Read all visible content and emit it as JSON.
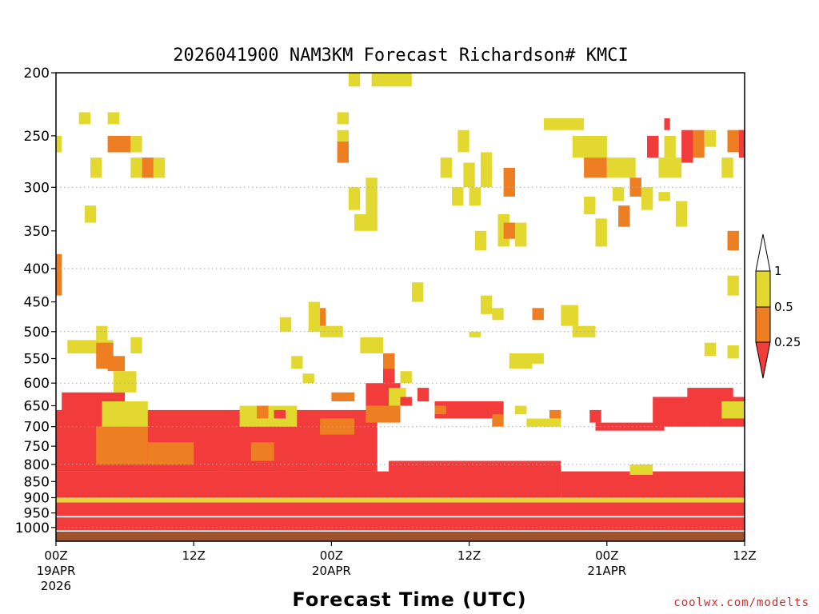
{
  "chart_data": {
    "type": "heatmap",
    "title": "2026041900 NAM3KM Forecast Richardson# KMCI",
    "xlabel": "Forecast Time (UTC)",
    "ylabel": "",
    "x_range_hours": [
      0,
      60
    ],
    "y_range_hpa": [
      200,
      1050
    ],
    "y_scale": "log-pressure",
    "y_ticks": [
      {
        "p": 200,
        "label": "200"
      },
      {
        "p": 250,
        "label": "250"
      },
      {
        "p": 300,
        "label": "300"
      },
      {
        "p": 350,
        "label": "350"
      },
      {
        "p": 400,
        "label": "400"
      },
      {
        "p": 450,
        "label": "450"
      },
      {
        "p": 500,
        "label": "500"
      },
      {
        "p": 550,
        "label": "550"
      },
      {
        "p": 600,
        "label": "600"
      },
      {
        "p": 650,
        "label": "650"
      },
      {
        "p": 700,
        "label": "700"
      },
      {
        "p": 750,
        "label": "750"
      },
      {
        "p": 800,
        "label": "800"
      },
      {
        "p": 850,
        "label": "850"
      },
      {
        "p": 900,
        "label": "900"
      },
      {
        "p": 950,
        "label": "950"
      },
      {
        "p": 1000,
        "label": "1000"
      }
    ],
    "dotted_gridlines_hpa": [
      300,
      400,
      500,
      600,
      700,
      800,
      900,
      1000
    ],
    "x_ticks": [
      {
        "h": 0,
        "label": "00Z",
        "sub1": "19APR",
        "sub2": "2026"
      },
      {
        "h": 12,
        "label": "12Z",
        "sub1": "",
        "sub2": ""
      },
      {
        "h": 24,
        "label": "00Z",
        "sub1": "20APR",
        "sub2": ""
      },
      {
        "h": 36,
        "label": "12Z",
        "sub1": "",
        "sub2": ""
      },
      {
        "h": 48,
        "label": "00Z",
        "sub1": "21APR",
        "sub2": ""
      },
      {
        "h": 60,
        "label": "12Z",
        "sub1": "",
        "sub2": ""
      }
    ],
    "legend": {
      "placement": "right",
      "levels": [
        {
          "label": "1",
          "value": 1
        },
        {
          "label": "0.5",
          "value": 0.5
        },
        {
          "label": "0.25",
          "value": 0.25
        }
      ],
      "bins": [
        {
          "range": "0-0.25",
          "color": "#f23b3b"
        },
        {
          "range": "0.25-0.5",
          "color": "#ee7e22"
        },
        {
          "range": "0.5-1",
          "color": "#e3d830"
        },
        {
          "range": ">1",
          "color": "#ffffff"
        }
      ]
    },
    "colors": {
      "red": "#f23b3b",
      "orange": "#ee7e22",
      "yellow": "#e3d830",
      "ground": "#a0522d",
      "grid": "#aaaaaa"
    },
    "ground_below_hpa": 1015,
    "patches": [
      {
        "h": [
          0,
          60
        ],
        "p": [
          965,
          1010
        ],
        "c": "red"
      },
      {
        "h": [
          0,
          28
        ],
        "p": [
          660,
          820
        ],
        "c": "red"
      },
      {
        "h": [
          0,
          30
        ],
        "p": [
          820,
          900
        ],
        "c": "red"
      },
      {
        "h": [
          29,
          44
        ],
        "p": [
          790,
          900
        ],
        "c": "red"
      },
      {
        "h": [
          0,
          60
        ],
        "p": [
          915,
          960
        ],
        "c": "red"
      },
      {
        "h": [
          44,
          60
        ],
        "p": [
          820,
          910
        ],
        "c": "red"
      },
      {
        "h": [
          47,
          53
        ],
        "p": [
          690,
          710
        ],
        "c": "red"
      },
      {
        "h": [
          52,
          60
        ],
        "p": [
          630,
          700
        ],
        "c": "red"
      },
      {
        "h": [
          55,
          59
        ],
        "p": [
          610,
          630
        ],
        "c": "red"
      },
      {
        "h": [
          33,
          39
        ],
        "p": [
          640,
          680
        ],
        "c": "red"
      },
      {
        "h": [
          27,
          30
        ],
        "p": [
          600,
          650
        ],
        "c": "red"
      },
      {
        "h": [
          0.5,
          6
        ],
        "p": [
          620,
          700
        ],
        "c": "red"
      },
      {
        "h": [
          3.5,
          8
        ],
        "p": [
          700,
          800
        ],
        "c": "orange"
      },
      {
        "h": [
          8,
          12
        ],
        "p": [
          740,
          800
        ],
        "c": "orange"
      },
      {
        "h": [
          17,
          19
        ],
        "p": [
          740,
          790
        ],
        "c": "orange"
      },
      {
        "h": [
          23,
          26
        ],
        "p": [
          680,
          720
        ],
        "c": "orange"
      },
      {
        "h": [
          27,
          30
        ],
        "p": [
          650,
          690
        ],
        "c": "orange"
      },
      {
        "h": [
          24,
          26
        ],
        "p": [
          620,
          640
        ],
        "c": "orange"
      },
      {
        "h": [
          0,
          60
        ],
        "p": [
          900,
          915
        ],
        "c": "yellow"
      },
      {
        "h": [
          4,
          8
        ],
        "p": [
          640,
          700
        ],
        "c": "yellow"
      },
      {
        "h": [
          16,
          21
        ],
        "p": [
          650,
          700
        ],
        "c": "yellow"
      },
      {
        "h": [
          29,
          30.5
        ],
        "p": [
          610,
          650
        ],
        "c": "yellow"
      },
      {
        "h": [
          41,
          44
        ],
        "p": [
          680,
          700
        ],
        "c": "yellow"
      },
      {
        "h": [
          40,
          41
        ],
        "p": [
          650,
          670
        ],
        "c": "yellow"
      },
      {
        "h": [
          50,
          52
        ],
        "p": [
          800,
          830
        ],
        "c": "yellow"
      },
      {
        "h": [
          58,
          60
        ],
        "p": [
          640,
          680
        ],
        "c": "yellow"
      },
      {
        "h": [
          1,
          5
        ],
        "p": [
          515,
          540
        ],
        "c": "yellow"
      },
      {
        "h": [
          3.5,
          4.5
        ],
        "p": [
          490,
          515
        ],
        "c": "yellow"
      },
      {
        "h": [
          3.5,
          5
        ],
        "p": [
          520,
          570
        ],
        "c": "orange"
      },
      {
        "h": [
          4.5,
          6
        ],
        "p": [
          545,
          575
        ],
        "c": "orange"
      },
      {
        "h": [
          5,
          7
        ],
        "p": [
          575,
          620
        ],
        "c": "yellow"
      },
      {
        "h": [
          6.5,
          7.5
        ],
        "p": [
          510,
          540
        ],
        "c": "yellow"
      },
      {
        "h": [
          23,
          25
        ],
        "p": [
          490,
          510
        ],
        "c": "yellow"
      },
      {
        "h": [
          22.5,
          23.5
        ],
        "p": [
          460,
          490
        ],
        "c": "orange"
      },
      {
        "h": [
          22,
          23
        ],
        "p": [
          450,
          500
        ],
        "c": "yellow"
      },
      {
        "h": [
          26.5,
          28.5
        ],
        "p": [
          510,
          540
        ],
        "c": "yellow"
      },
      {
        "h": [
          28.5,
          29.5
        ],
        "p": [
          540,
          570
        ],
        "c": "orange"
      },
      {
        "h": [
          28.5,
          29.5
        ],
        "p": [
          570,
          610
        ],
        "c": "red"
      },
      {
        "h": [
          30,
          31
        ],
        "p": [
          575,
          600
        ],
        "c": "yellow"
      },
      {
        "h": [
          21.5,
          22.5
        ],
        "p": [
          580,
          600
        ],
        "c": "yellow"
      },
      {
        "h": [
          20.5,
          21.5
        ],
        "p": [
          545,
          570
        ],
        "c": "yellow"
      },
      {
        "h": [
          39.5,
          41.5
        ],
        "p": [
          540,
          570
        ],
        "c": "yellow"
      },
      {
        "h": [
          41.5,
          42.5
        ],
        "p": [
          540,
          560
        ],
        "c": "yellow"
      },
      {
        "h": [
          45,
          47
        ],
        "p": [
          490,
          510
        ],
        "c": "yellow"
      },
      {
        "h": [
          44,
          45.5
        ],
        "p": [
          455,
          490
        ],
        "c": "yellow"
      },
      {
        "h": [
          41.5,
          42.5
        ],
        "p": [
          460,
          480
        ],
        "c": "orange"
      },
      {
        "h": [
          38,
          39
        ],
        "p": [
          460,
          480
        ],
        "c": "yellow"
      },
      {
        "h": [
          37,
          38
        ],
        "p": [
          440,
          470
        ],
        "c": "yellow"
      },
      {
        "h": [
          36,
          37
        ],
        "p": [
          500,
          510
        ],
        "c": "yellow"
      },
      {
        "h": [
          19.5,
          20.5
        ],
        "p": [
          475,
          500
        ],
        "c": "yellow"
      },
      {
        "h": [
          0,
          0.5
        ],
        "p": [
          380,
          440
        ],
        "c": "orange"
      },
      {
        "h": [
          31,
          32
        ],
        "p": [
          420,
          450
        ],
        "c": "yellow"
      },
      {
        "h": [
          58.5,
          59.5
        ],
        "p": [
          525,
          550
        ],
        "c": "yellow"
      },
      {
        "h": [
          56.5,
          57.5
        ],
        "p": [
          520,
          545
        ],
        "c": "yellow"
      },
      {
        "h": [
          26,
          28
        ],
        "p": [
          330,
          350
        ],
        "c": "yellow"
      },
      {
        "h": [
          27,
          28
        ],
        "p": [
          290,
          330
        ],
        "c": "yellow"
      },
      {
        "h": [
          25.5,
          26.5
        ],
        "p": [
          300,
          325
        ],
        "c": "yellow"
      },
      {
        "h": [
          39,
          40
        ],
        "p": [
          280,
          310
        ],
        "c": "orange"
      },
      {
        "h": [
          38.5,
          39.5
        ],
        "p": [
          330,
          370
        ],
        "c": "yellow"
      },
      {
        "h": [
          39,
          40
        ],
        "p": [
          340,
          360
        ],
        "c": "orange"
      },
      {
        "h": [
          40,
          41
        ],
        "p": [
          340,
          370
        ],
        "c": "yellow"
      },
      {
        "h": [
          36.5,
          37.5
        ],
        "p": [
          350,
          375
        ],
        "c": "yellow"
      },
      {
        "h": [
          34.5,
          35.5
        ],
        "p": [
          300,
          320
        ],
        "c": "yellow"
      },
      {
        "h": [
          35.5,
          36.5
        ],
        "p": [
          275,
          300
        ],
        "c": "yellow"
      },
      {
        "h": [
          36,
          37
        ],
        "p": [
          300,
          320
        ],
        "c": "yellow"
      },
      {
        "h": [
          37,
          38
        ],
        "p": [
          265,
          300
        ],
        "c": "yellow"
      },
      {
        "h": [
          35,
          36
        ],
        "p": [
          245,
          265
        ],
        "c": "yellow"
      },
      {
        "h": [
          33.5,
          34.5
        ],
        "p": [
          270,
          290
        ],
        "c": "yellow"
      },
      {
        "h": [
          24.5,
          25.5
        ],
        "p": [
          230,
          240
        ],
        "c": "yellow"
      },
      {
        "h": [
          24.5,
          25.5
        ],
        "p": [
          255,
          275
        ],
        "c": "orange"
      },
      {
        "h": [
          24.5,
          25.5
        ],
        "p": [
          245,
          255
        ],
        "c": "yellow"
      },
      {
        "h": [
          25.5,
          26.5
        ],
        "p": [
          200,
          210
        ],
        "c": "yellow"
      },
      {
        "h": [
          27.5,
          31
        ],
        "p": [
          200,
          210
        ],
        "c": "yellow"
      },
      {
        "h": [
          2,
          3
        ],
        "p": [
          230,
          240
        ],
        "c": "yellow"
      },
      {
        "h": [
          4.5,
          5.5
        ],
        "p": [
          230,
          240
        ],
        "c": "yellow"
      },
      {
        "h": [
          4.5,
          6.5
        ],
        "p": [
          250,
          265
        ],
        "c": "orange"
      },
      {
        "h": [
          6.5,
          7.5
        ],
        "p": [
          250,
          265
        ],
        "c": "yellow"
      },
      {
        "h": [
          3,
          4
        ],
        "p": [
          270,
          290
        ],
        "c": "yellow"
      },
      {
        "h": [
          6.5,
          7.5
        ],
        "p": [
          270,
          290
        ],
        "c": "yellow"
      },
      {
        "h": [
          7.5,
          8.5
        ],
        "p": [
          270,
          290
        ],
        "c": "orange"
      },
      {
        "h": [
          8.5,
          9.5
        ],
        "p": [
          270,
          290
        ],
        "c": "yellow"
      },
      {
        "h": [
          2.5,
          3.5
        ],
        "p": [
          320,
          340
        ],
        "c": "yellow"
      },
      {
        "h": [
          0,
          0.5
        ],
        "p": [
          250,
          265
        ],
        "c": "yellow"
      },
      {
        "h": [
          42.5,
          46
        ],
        "p": [
          235,
          245
        ],
        "c": "yellow"
      },
      {
        "h": [
          45,
          48
        ],
        "p": [
          250,
          270
        ],
        "c": "yellow"
      },
      {
        "h": [
          46,
          48
        ],
        "p": [
          270,
          290
        ],
        "c": "orange"
      },
      {
        "h": [
          48,
          50.5
        ],
        "p": [
          270,
          290
        ],
        "c": "yellow"
      },
      {
        "h": [
          48.5,
          49.5
        ],
        "p": [
          300,
          315
        ],
        "c": "yellow"
      },
      {
        "h": [
          49,
          50
        ],
        "p": [
          320,
          345
        ],
        "c": "orange"
      },
      {
        "h": [
          50,
          51
        ],
        "p": [
          290,
          310
        ],
        "c": "orange"
      },
      {
        "h": [
          51,
          52
        ],
        "p": [
          300,
          325
        ],
        "c": "yellow"
      },
      {
        "h": [
          52.5,
          53.5
        ],
        "p": [
          305,
          315
        ],
        "c": "yellow"
      },
      {
        "h": [
          51.5,
          52.5
        ],
        "p": [
          250,
          270
        ],
        "c": "red"
      },
      {
        "h": [
          53,
          53.5
        ],
        "p": [
          235,
          245
        ],
        "c": "red"
      },
      {
        "h": [
          52.5,
          54.5
        ],
        "p": [
          270,
          290
        ],
        "c": "yellow"
      },
      {
        "h": [
          53,
          54
        ],
        "p": [
          250,
          270
        ],
        "c": "yellow"
      },
      {
        "h": [
          54.5,
          55.5
        ],
        "p": [
          245,
          275
        ],
        "c": "red"
      },
      {
        "h": [
          55.5,
          56.5
        ],
        "p": [
          245,
          270
        ],
        "c": "orange"
      },
      {
        "h": [
          56.5,
          57.5
        ],
        "p": [
          245,
          260
        ],
        "c": "yellow"
      },
      {
        "h": [
          58,
          59
        ],
        "p": [
          270,
          290
        ],
        "c": "yellow"
      },
      {
        "h": [
          58.5,
          60
        ],
        "p": [
          245,
          265
        ],
        "c": "orange"
      },
      {
        "h": [
          59.5,
          60
        ],
        "p": [
          245,
          270
        ],
        "c": "red"
      },
      {
        "h": [
          58.5,
          59.5
        ],
        "p": [
          350,
          375
        ],
        "c": "orange"
      },
      {
        "h": [
          58.5,
          59.5
        ],
        "p": [
          410,
          440
        ],
        "c": "yellow"
      },
      {
        "h": [
          46,
          47
        ],
        "p": [
          310,
          330
        ],
        "c": "yellow"
      },
      {
        "h": [
          47,
          48
        ],
        "p": [
          335,
          370
        ],
        "c": "yellow"
      },
      {
        "h": [
          54,
          55
        ],
        "p": [
          315,
          345
        ],
        "c": "yellow"
      },
      {
        "h": [
          17.5,
          18.5
        ],
        "p": [
          650,
          680
        ],
        "c": "orange"
      },
      {
        "h": [
          19,
          20
        ],
        "p": [
          660,
          680
        ],
        "c": "red"
      },
      {
        "h": [
          30,
          31
        ],
        "p": [
          630,
          650
        ],
        "c": "red"
      },
      {
        "h": [
          31.5,
          32.5
        ],
        "p": [
          610,
          640
        ],
        "c": "red"
      },
      {
        "h": [
          33,
          34
        ],
        "p": [
          650,
          670
        ],
        "c": "orange"
      },
      {
        "h": [
          38,
          39
        ],
        "p": [
          670,
          700
        ],
        "c": "orange"
      },
      {
        "h": [
          43,
          44
        ],
        "p": [
          660,
          680
        ],
        "c": "orange"
      },
      {
        "h": [
          46.5,
          47.5
        ],
        "p": [
          660,
          690
        ],
        "c": "red"
      }
    ]
  }
}
